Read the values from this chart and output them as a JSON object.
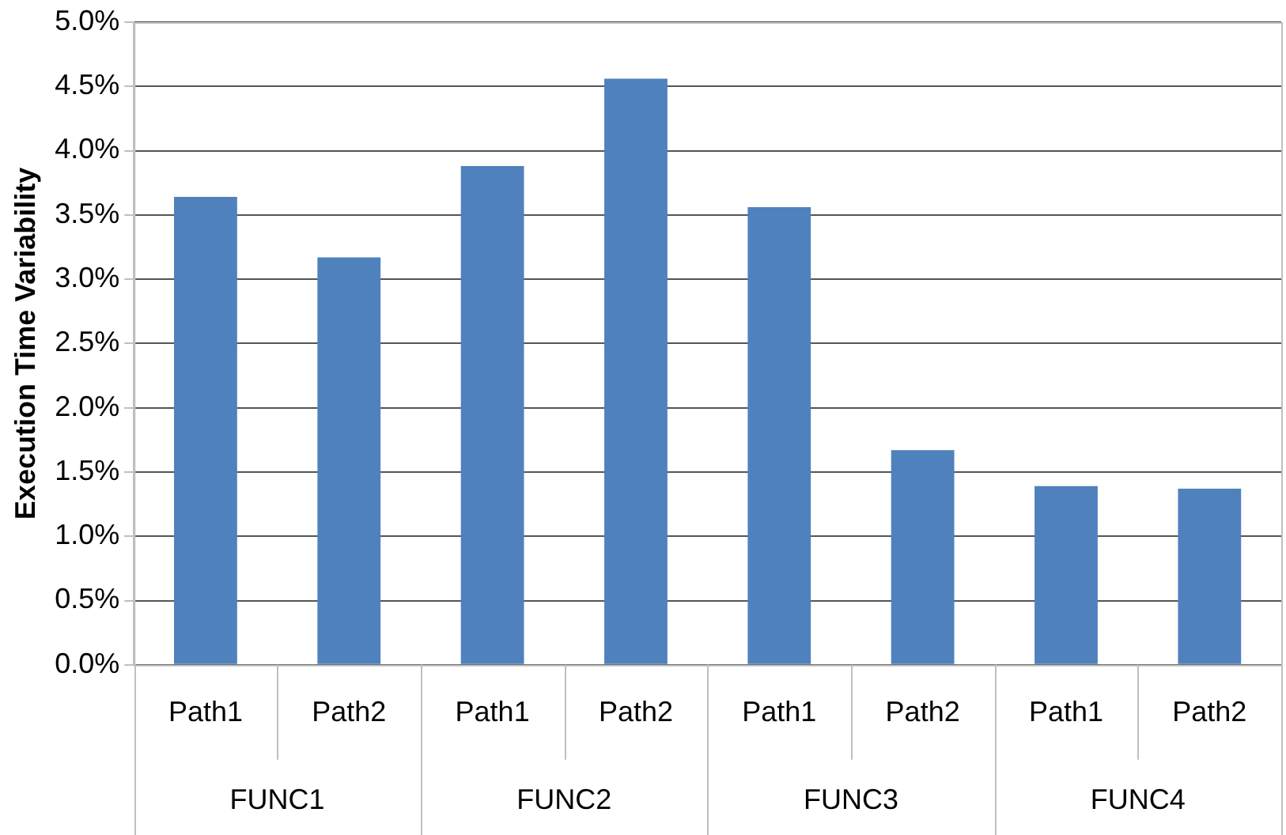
{
  "chart_data": {
    "type": "bar",
    "ylabel": "Execution Time Variability",
    "categories": [
      "Path1",
      "Path2",
      "Path1",
      "Path2",
      "Path1",
      "Path2",
      "Path1",
      "Path2"
    ],
    "values": [
      3.64,
      3.17,
      3.88,
      4.56,
      3.56,
      1.67,
      1.39,
      1.37
    ],
    "color": "#4f81bd",
    "ylim": [
      0,
      5
    ],
    "yticks": [
      {
        "value": 0,
        "label": "0.0%"
      },
      {
        "value": 0.5,
        "label": "0.5%"
      },
      {
        "value": 1,
        "label": "1.0%"
      },
      {
        "value": 1.5,
        "label": "1.5%"
      },
      {
        "value": 2,
        "label": "2.0%"
      },
      {
        "value": 2.5,
        "label": "2.5%"
      },
      {
        "value": 3,
        "label": "3.0%"
      },
      {
        "value": 3.5,
        "label": "3.5%"
      },
      {
        "value": 4,
        "label": "4.0%"
      },
      {
        "value": 4.5,
        "label": "4.5%"
      },
      {
        "value": 5,
        "label": "5.0%"
      }
    ],
    "grid": "y",
    "annotations": [
      "FUNC1",
      "FUNC2",
      "FUNC3",
      "FUNC4"
    ]
  }
}
